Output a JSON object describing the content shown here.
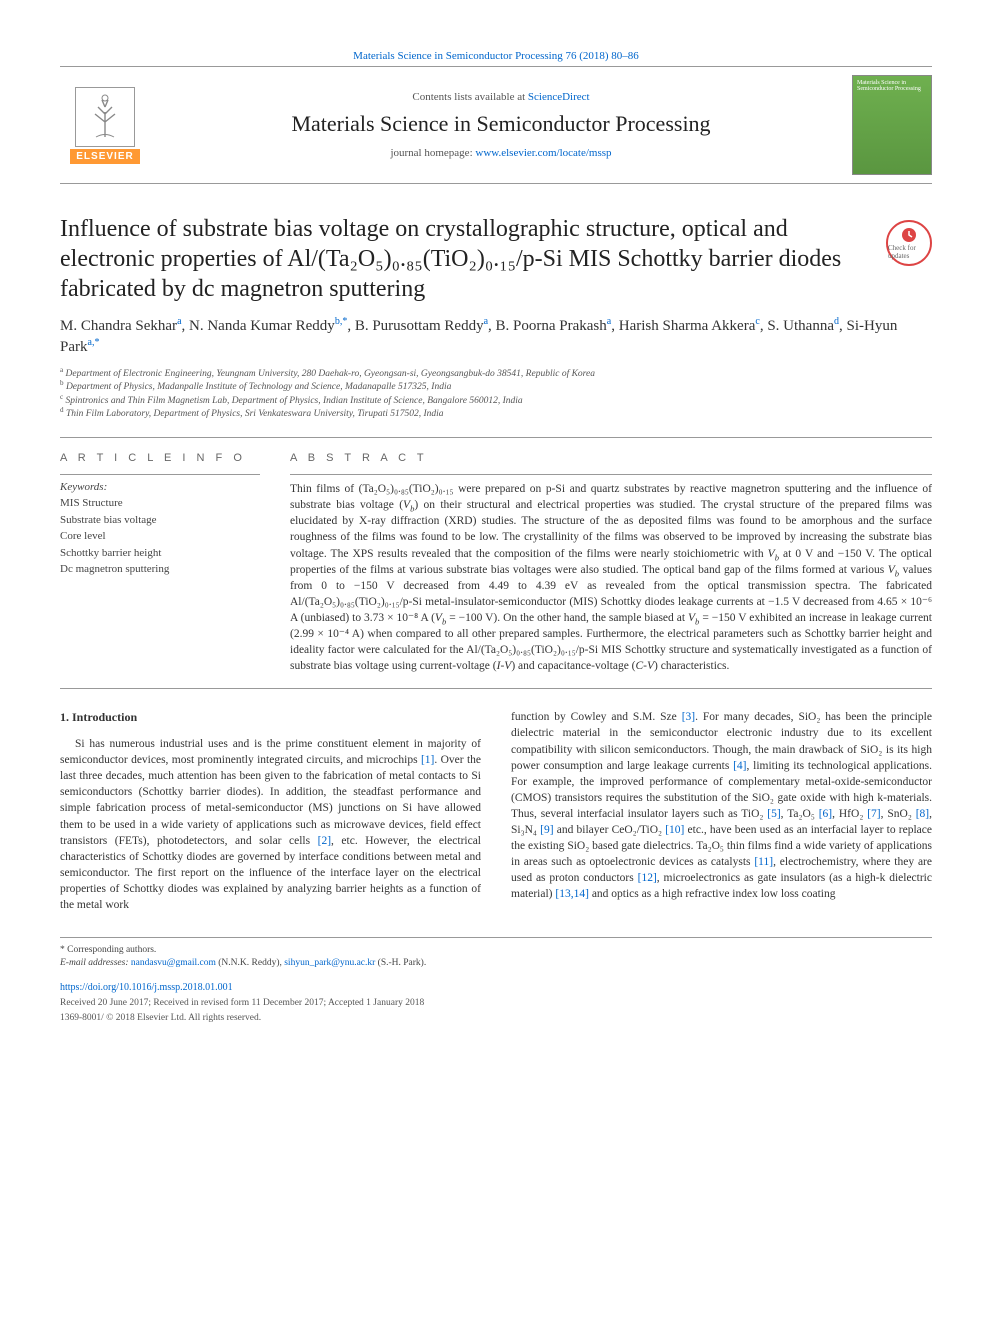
{
  "journal_ref": "Materials Science in Semiconductor Processing 76 (2018) 80–86",
  "masthead": {
    "contents_prefix": "Contents lists available at ",
    "contents_link": "ScienceDirect",
    "journal_name": "Materials Science in Semiconductor Processing",
    "homepage_prefix": "journal homepage: ",
    "homepage_url": "www.elsevier.com/locate/mssp",
    "elsevier": "ELSEVIER",
    "cover_label": "Materials Science in Semiconductor Processing"
  },
  "title": "Influence of substrate bias voltage on crystallographic structure, optical and electronic properties of Al/(Ta₂O₅)₀.₈₅(TiO₂)₀.₁₅/p-Si MIS Schottky barrier diodes fabricated by dc magnetron sputtering",
  "crossmark": "Check for updates",
  "authors_html": "M. Chandra Sekhar<sup>a</sup>, N. Nanda Kumar Reddy<sup>b,*</sup>, B. Purusottam Reddy<sup>a</sup>, B. Poorna Prakash<sup>a</sup>, Harish Sharma Akkera<sup>c</sup>, S. Uthanna<sup>d</sup>, Si-Hyun Park<sup>a,*</sup>",
  "affiliations": [
    "a Department of Electronic Engineering, Yeungnam University, 280 Daehak-ro, Gyeongsan-si, Gyeongsangbuk-do 38541, Republic of Korea",
    "b Department of Physics, Madanpalle Institute of Technology and Science, Madanapalle 517325, India",
    "c Spintronics and Thin Film Magnetism Lab, Department of Physics, Indian Institute of Science, Bangalore 560012, India",
    "d Thin Film Laboratory, Department of Physics, Sri Venkateswara University, Tirupati 517502, India"
  ],
  "article_info_head": "A R T I C L E  I N F O",
  "abstract_head": "A B S T R A C T",
  "keywords_label": "Keywords:",
  "keywords": [
    "MIS Structure",
    "Substrate bias voltage",
    "Core level",
    "Schottky barrier height",
    "Dc magnetron sputtering"
  ],
  "abstract_html": "Thin films of (Ta₂O₅)₀.₈₅(TiO₂)₀.₁₅ were prepared on p-Si and quartz substrates by reactive magnetron sputtering and the influence of substrate bias voltage (<span class=\"ital\">V<sub>b</sub></span>) on their structural and electrical properties was studied. The crystal structure of the prepared films was elucidated by X-ray diffraction (XRD) studies. The structure of the as deposited films was found to be amorphous and the surface roughness of the films was found to be low. The crystallinity of the films was observed to be improved by increasing the substrate bias voltage. The XPS results revealed that the composition of the films were nearly stoichiometric with <span class=\"ital\">V<sub>b</sub></span> at 0 V and −150 V. The optical properties of the films at various substrate bias voltages were also studied. The optical band gap of the films formed at various <span class=\"ital\">V<sub>b</sub></span> values from 0 to −150 V decreased from 4.49 to 4.39 eV as revealed from the optical transmission spectra. The fabricated Al/(Ta₂O₅)₀.₈₅(TiO₂)₀.₁₅/p-Si metal-insulator-semiconductor (MIS) Schottky diodes leakage currents at −1.5 V decreased from 4.65 × 10⁻⁶ A (unbiased) to 3.73 × 10⁻⁸ A (<span class=\"ital\">V<sub>b</sub></span> = −100 V). On the other hand, the sample biased at <span class=\"ital\">V<sub>b</sub></span> = −150 V exhibited an increase in leakage current (2.99 × 10⁻⁴ A) when compared to all other prepared samples. Furthermore, the electrical parameters such as Schottky barrier height and ideality factor were calculated for the Al/(Ta₂O₅)₀.₈₅(TiO₂)₀.₁₅/p-Si MIS Schottky structure and systematically investigated as a function of substrate bias voltage using current-voltage (<span class=\"ital\">I-V</span>) and capacitance-voltage (<span class=\"ital\">C-V</span>) characteristics.",
  "intro_heading": "1. Introduction",
  "intro_left_html": "Si has numerous industrial uses and is the prime constituent element in majority of semiconductor devices, most prominently integrated circuits, and microchips <span class=\"ref-link\">[1]</span>. Over the last three decades, much attention has been given to the fabrication of metal contacts to Si semiconductors (Schottky barrier diodes). In addition, the steadfast performance and simple fabrication process of metal-semiconductor (MS) junctions on Si have allowed them to be used in a wide variety of applications such as microwave devices, field effect transistors (FETs), photodetectors, and solar cells <span class=\"ref-link\">[2]</span>, etc. However, the electrical characteristics of Schottky diodes are governed by interface conditions between metal and semiconductor. The first report on the influence of the interface layer on the electrical properties of Schottky diodes was explained by analyzing barrier heights as a function of the metal work",
  "intro_right_html": "function by Cowley and S.M. Sze <span class=\"ref-link\">[3]</span>. For many decades, SiO₂ has been the principle dielectric material in the semiconductor electronic industry due to its excellent compatibility with silicon semiconductors. Though, the main drawback of SiO₂ is its high power consumption and large leakage currents <span class=\"ref-link\">[4]</span>, limiting its technological applications. For example, the improved performance of complementary metal-oxide-semiconductor (CMOS) transistors requires the substitution of the SiO₂ gate oxide with high k-materials. Thus, several interfacial insulator layers such as TiO₂ <span class=\"ref-link\">[5]</span>, Ta₂O₅ <span class=\"ref-link\">[6]</span>, HfO₂ <span class=\"ref-link\">[7]</span>, SnO₂ <span class=\"ref-link\">[8]</span>, Si₃N₄ <span class=\"ref-link\">[9]</span> and bilayer CeO₂/TiO₂ <span class=\"ref-link\">[10]</span> etc., have been used as an interfacial layer to replace the existing SiO₂ based gate dielectrics. Ta₂O₅ thin films find a wide variety of applications in areas such as optoelectronic devices as catalysts <span class=\"ref-link\">[11]</span>, electrochemistry, where they are used as proton conductors <span class=\"ref-link\">[12]</span>, microelectronics as gate insulators (as a high-k dielectric material) <span class=\"ref-link\">[13,14]</span> and optics as a high refractive index low loss coating",
  "footnotes": {
    "corr": "* Corresponding authors.",
    "email_label": "E-mail addresses:",
    "emails": [
      {
        "addr": "nandasvu@gmail.com",
        "who": "(N.N.K. Reddy)"
      },
      {
        "addr": "sihyun_park@ynu.ac.kr",
        "who": "(S.-H. Park)."
      }
    ],
    "doi": "https://doi.org/10.1016/j.mssp.2018.01.001",
    "received": "Received 20 June 2017; Received in revised form 11 December 2017; Accepted 1 January 2018",
    "copyright": "1369-8001/ © 2018 Elsevier Ltd. All rights reserved."
  },
  "colors": {
    "link": "#0066cc",
    "elsevier_orange": "#ff8a1f",
    "rule": "#999999"
  }
}
